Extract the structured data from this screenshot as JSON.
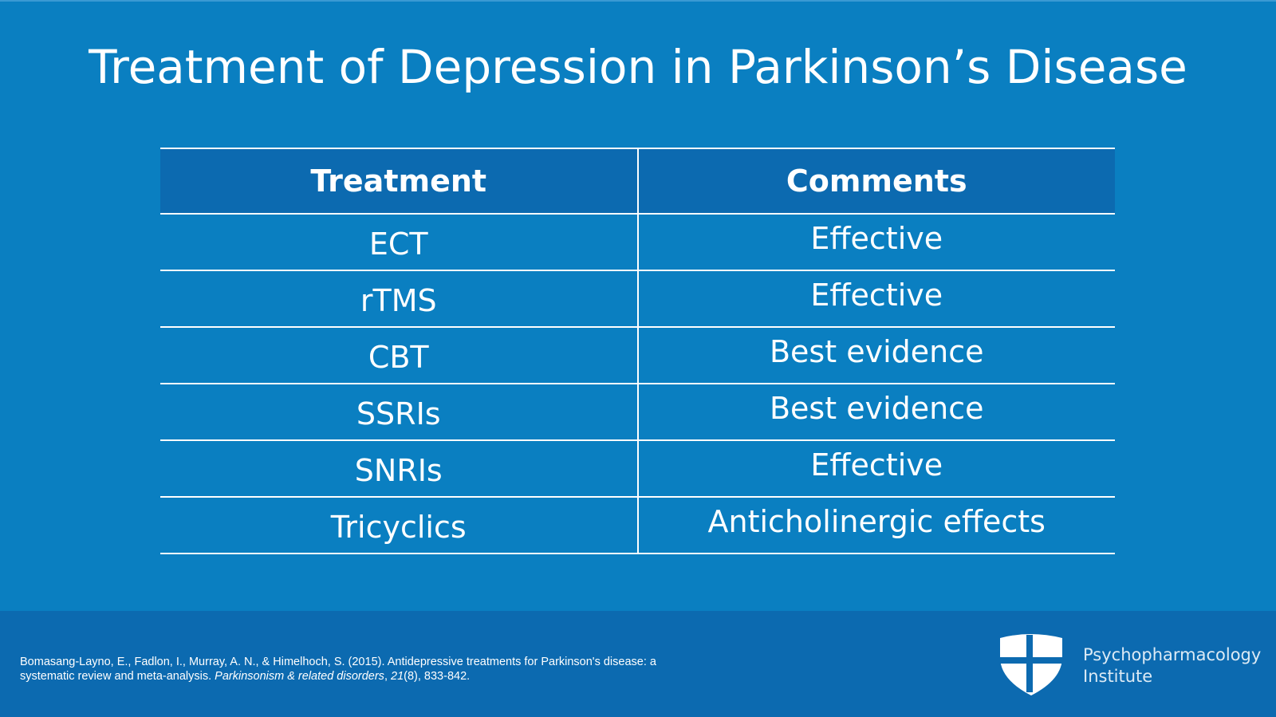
{
  "slide": {
    "title": "Treatment of Depression in Parkinson’s Disease"
  },
  "table": {
    "headers": [
      "Treatment",
      "Comments"
    ],
    "rows": [
      {
        "treatment": "ECT",
        "comment": "Effective"
      },
      {
        "treatment": "rTMS",
        "comment": "Effective"
      },
      {
        "treatment": "CBT",
        "comment": "Best evidence"
      },
      {
        "treatment": "SSRIs",
        "comment": "Best evidence"
      },
      {
        "treatment": "SNRIs",
        "comment": "Effective"
      },
      {
        "treatment": "Tricyclics",
        "comment": "Anticholinergic effects"
      }
    ]
  },
  "footer": {
    "citation": {
      "line1": "Bomasang-Layno, E., Fadlon, I., Murray, A. N., & Himelhoch, S. (2015). Antidepressive treatments for Parkinson's disease: a",
      "line2_prefix": "systematic review and meta-analysis. ",
      "journal": "Parkinsonism & related disorders",
      "sep": ", ",
      "volume": "21",
      "issue_pages": "(8), 833-842."
    },
    "brand": {
      "line1": "Psychopharmacology",
      "line2": "Institute",
      "icon": "shield-cross-icon"
    }
  },
  "colors": {
    "background": "#0a7fc1",
    "header_band": "#0c6ab0",
    "text": "#ffffff"
  }
}
